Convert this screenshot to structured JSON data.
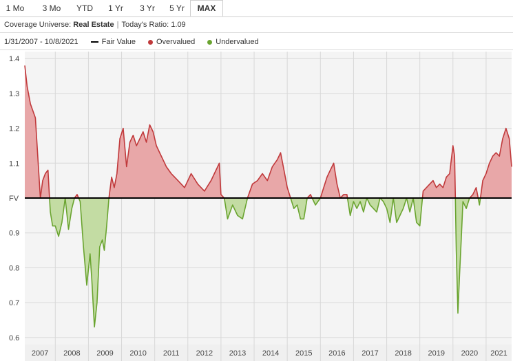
{
  "tabs": [
    {
      "label": "1 Mo",
      "active": false
    },
    {
      "label": "3 Mo",
      "active": false
    },
    {
      "label": "YTD",
      "active": false
    },
    {
      "label": "1 Yr",
      "active": false
    },
    {
      "label": "3 Yr",
      "active": false
    },
    {
      "label": "5 Yr",
      "active": false
    },
    {
      "label": "MAX",
      "active": true
    }
  ],
  "coverage": {
    "prefix": "Coverage Universe:",
    "sector": "Real Estate",
    "ratio_label": "Today's Ratio:",
    "ratio_value": "1.09"
  },
  "date_range": "1/31/2007 - 10/8/2021",
  "legend": {
    "fair_value": "Fair Value",
    "overvalued": "Overvalued",
    "undervalued": "Undervalued"
  },
  "colors": {
    "overvalued_line": "#c0393b",
    "overvalued_fill": "#e8a7a8",
    "undervalued_line": "#6aa430",
    "undervalued_fill": "#c3dca3",
    "fair_value_line": "#000000",
    "plot_bg": "#f4f4f4",
    "grid": "#d8d8d8"
  },
  "chart_data": {
    "type": "area",
    "baseline": 1.0,
    "baseline_label": "FV",
    "ylim": [
      0.58,
      1.42
    ],
    "y_ticks": [
      {
        "value": 1.4,
        "label": "1.4"
      },
      {
        "value": 1.3,
        "label": "1.3"
      },
      {
        "value": 1.2,
        "label": "1.2"
      },
      {
        "value": 1.1,
        "label": "1.1"
      },
      {
        "value": 1.0,
        "label": "FV"
      },
      {
        "value": 0.9,
        "label": "0.9"
      },
      {
        "value": 0.8,
        "label": "0.8"
      },
      {
        "value": 0.7,
        "label": "0.7"
      },
      {
        "value": 0.6,
        "label": "0.6"
      }
    ],
    "xlim": [
      2007.08,
      2021.77
    ],
    "x_ticks": [
      "2007",
      "2008",
      "2009",
      "2010",
      "2011",
      "2012",
      "2013",
      "2014",
      "2015",
      "2016",
      "2017",
      "2018",
      "2019",
      "2020",
      "2021"
    ],
    "series": [
      {
        "x": [
          2007.08,
          2007.15,
          2007.25,
          2007.4,
          2007.55,
          2007.62,
          2007.7,
          2007.78,
          2007.85,
          2007.92,
          2008.0,
          2008.1,
          2008.2,
          2008.3,
          2008.4,
          2008.5,
          2008.58,
          2008.66,
          2008.75,
          2008.85,
          2008.95,
          2009.05,
          2009.1,
          2009.18,
          2009.26,
          2009.34,
          2009.42,
          2009.48,
          2009.55,
          2009.62,
          2009.7,
          2009.78,
          2009.86,
          2009.95,
          2010.05,
          2010.15,
          2010.25,
          2010.35,
          2010.45,
          2010.55,
          2010.65,
          2010.75,
          2010.85,
          2010.95,
          2011.05,
          2011.15,
          2011.25,
          2011.35,
          2011.5,
          2011.7,
          2011.9,
          2012.1,
          2012.3,
          2012.5,
          2012.7,
          2012.8,
          2012.95,
          2013.0,
          2013.1,
          2013.2,
          2013.35,
          2013.5,
          2013.65,
          2013.8,
          2013.95,
          2014.1,
          2014.25,
          2014.4,
          2014.55,
          2014.7,
          2014.8,
          2014.9,
          2015.0,
          2015.1,
          2015.2,
          2015.3,
          2015.4,
          2015.5,
          2015.6,
          2015.7,
          2015.85,
          2016.0,
          2016.1,
          2016.2,
          2016.3,
          2016.4,
          2016.5,
          2016.6,
          2016.7,
          2016.8,
          2016.9,
          2017.0,
          2017.1,
          2017.2,
          2017.3,
          2017.4,
          2017.5,
          2017.6,
          2017.7,
          2017.8,
          2017.9,
          2018.0,
          2018.1,
          2018.2,
          2018.3,
          2018.4,
          2018.5,
          2018.6,
          2018.7,
          2018.8,
          2018.9,
          2019.0,
          2019.1,
          2019.2,
          2019.3,
          2019.4,
          2019.5,
          2019.6,
          2019.7,
          2019.8,
          2019.9,
          2020.0,
          2020.05,
          2020.1,
          2020.15,
          2020.2,
          2020.25,
          2020.3,
          2020.4,
          2020.5,
          2020.6,
          2020.7,
          2020.8,
          2020.9,
          2021.0,
          2021.1,
          2021.2,
          2021.3,
          2021.4,
          2021.5,
          2021.6,
          2021.7,
          2021.77
        ],
        "y": [
          1.38,
          1.32,
          1.27,
          1.23,
          1.0,
          1.05,
          1.07,
          1.08,
          0.96,
          0.92,
          0.92,
          0.89,
          0.93,
          1.0,
          0.91,
          0.97,
          1.0,
          1.01,
          0.99,
          0.86,
          0.75,
          0.84,
          0.77,
          0.63,
          0.7,
          0.86,
          0.88,
          0.85,
          0.92,
          1.0,
          1.06,
          1.03,
          1.07,
          1.17,
          1.2,
          1.09,
          1.16,
          1.18,
          1.15,
          1.17,
          1.19,
          1.16,
          1.21,
          1.19,
          1.15,
          1.13,
          1.11,
          1.09,
          1.07,
          1.05,
          1.03,
          1.07,
          1.04,
          1.02,
          1.05,
          1.07,
          1.1,
          1.01,
          1.0,
          0.94,
          0.98,
          0.95,
          0.94,
          1.0,
          1.04,
          1.05,
          1.07,
          1.05,
          1.09,
          1.11,
          1.13,
          1.08,
          1.03,
          1.0,
          0.97,
          0.98,
          0.94,
          0.94,
          1.0,
          1.01,
          0.98,
          1.0,
          1.03,
          1.06,
          1.08,
          1.1,
          1.04,
          1.0,
          1.01,
          1.01,
          0.95,
          0.99,
          0.97,
          0.99,
          0.96,
          1.0,
          0.98,
          0.97,
          0.96,
          1.0,
          0.99,
          0.97,
          0.93,
          1.0,
          0.93,
          0.95,
          0.97,
          1.0,
          0.96,
          1.0,
          0.93,
          0.92,
          1.02,
          1.03,
          1.04,
          1.05,
          1.03,
          1.04,
          1.03,
          1.06,
          1.07,
          1.15,
          1.12,
          0.85,
          0.67,
          0.78,
          0.88,
          0.99,
          0.97,
          1.0,
          1.01,
          1.03,
          0.98,
          1.05,
          1.07,
          1.1,
          1.12,
          1.13,
          1.12,
          1.17,
          1.2,
          1.17,
          1.09
        ]
      }
    ]
  }
}
